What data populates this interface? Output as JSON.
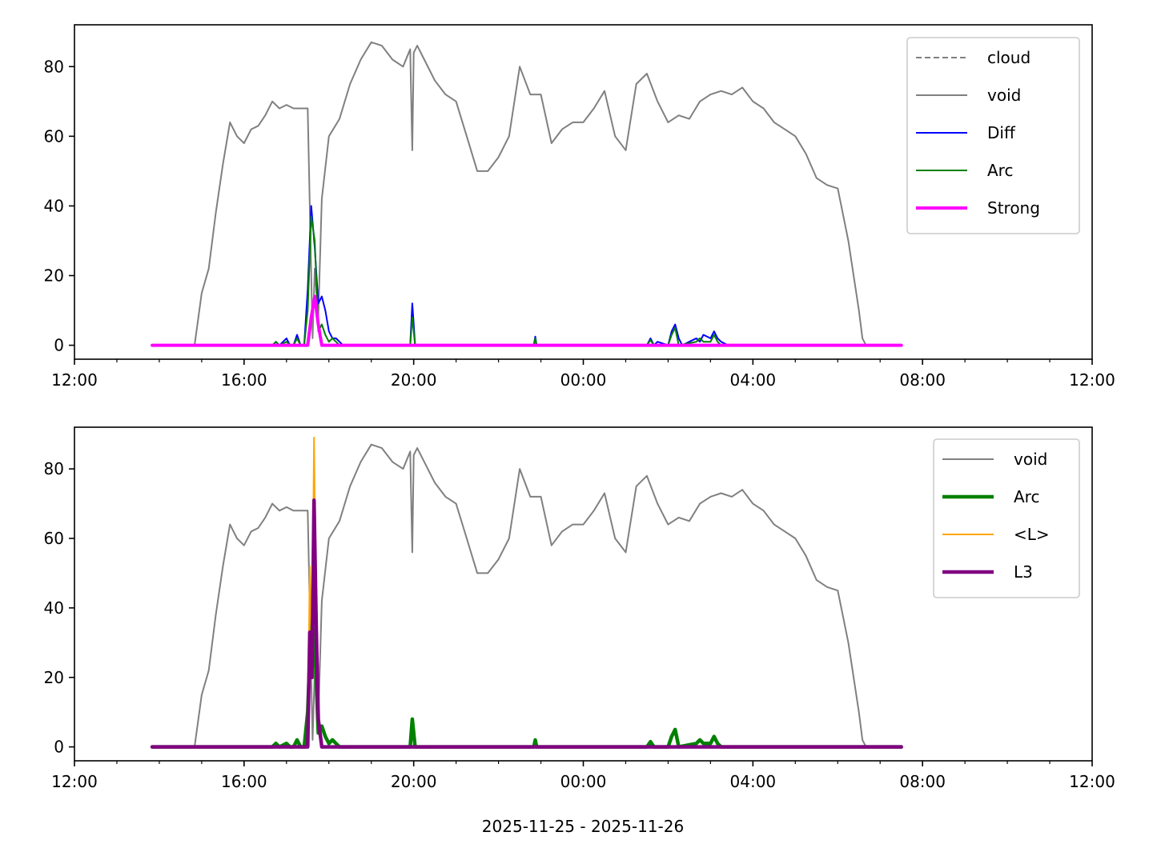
{
  "figure": {
    "xlabel": "2025-11-25 - 2025-11-26"
  },
  "chart_data": [
    {
      "type": "line",
      "xlabel": "",
      "ylabel": "",
      "xlim": [
        "2025-11-25 12:00",
        "2025-11-26 12:00"
      ],
      "ylim": [
        -4,
        92
      ],
      "x_ticks": [
        "12:00",
        "16:00",
        "20:00",
        "00:00",
        "04:00",
        "08:00",
        "12:00"
      ],
      "y_ticks": [
        0,
        20,
        40,
        60,
        80
      ],
      "grid": false,
      "legend": "top-right",
      "series": [
        {
          "name": "cloud",
          "color": "#808080",
          "style": "dashed",
          "x": [],
          "y": []
        },
        {
          "name": "void",
          "color": "#808080",
          "style": "solid",
          "x": [
            "2025-11-25 13:50",
            "2025-11-25 14:50",
            "2025-11-25 15:00",
            "2025-11-25 15:10",
            "2025-11-25 15:20",
            "2025-11-25 15:30",
            "2025-11-25 15:40",
            "2025-11-25 15:50",
            "2025-11-25 16:00",
            "2025-11-25 16:10",
            "2025-11-25 16:20",
            "2025-11-25 16:30",
            "2025-11-25 16:40",
            "2025-11-25 16:50",
            "2025-11-25 17:00",
            "2025-11-25 17:10",
            "2025-11-25 17:20",
            "2025-11-25 17:30",
            "2025-11-25 17:37",
            "2025-11-25 17:40",
            "2025-11-25 17:45",
            "2025-11-25 17:50",
            "2025-11-25 18:00",
            "2025-11-25 18:15",
            "2025-11-25 18:30",
            "2025-11-25 18:45",
            "2025-11-25 19:00",
            "2025-11-25 19:15",
            "2025-11-25 19:30",
            "2025-11-25 19:45",
            "2025-11-25 19:55",
            "2025-11-25 19:58",
            "2025-11-25 20:00",
            "2025-11-25 20:05",
            "2025-11-25 20:15",
            "2025-11-25 20:30",
            "2025-11-25 20:45",
            "2025-11-25 21:00",
            "2025-11-25 21:15",
            "2025-11-25 21:30",
            "2025-11-25 21:45",
            "2025-11-25 22:00",
            "2025-11-25 22:15",
            "2025-11-25 22:30",
            "2025-11-25 22:45",
            "2025-11-25 23:00",
            "2025-11-25 23:15",
            "2025-11-25 23:30",
            "2025-11-25 23:45",
            "2025-11-26 00:00",
            "2025-11-26 00:15",
            "2025-11-26 00:30",
            "2025-11-26 00:45",
            "2025-11-26 01:00",
            "2025-11-26 01:15",
            "2025-11-26 01:30",
            "2025-11-26 01:45",
            "2025-11-26 02:00",
            "2025-11-26 02:15",
            "2025-11-26 02:30",
            "2025-11-26 02:45",
            "2025-11-26 03:00",
            "2025-11-26 03:15",
            "2025-11-26 03:30",
            "2025-11-26 03:45",
            "2025-11-26 04:00",
            "2025-11-26 04:15",
            "2025-11-26 04:30",
            "2025-11-26 04:45",
            "2025-11-26 05:00",
            "2025-11-26 05:15",
            "2025-11-26 05:30",
            "2025-11-26 05:45",
            "2025-11-26 06:00",
            "2025-11-26 06:15",
            "2025-11-26 06:30",
            "2025-11-26 06:35",
            "2025-11-26 06:40",
            "2025-11-26 07:30"
          ],
          "y": [
            0,
            0,
            15,
            22,
            38,
            52,
            64,
            60,
            58,
            62,
            63,
            66,
            70,
            68,
            69,
            68,
            68,
            68,
            2,
            22,
            8,
            42,
            60,
            65,
            75,
            82,
            87,
            86,
            82,
            80,
            85,
            56,
            84,
            86,
            82,
            76,
            72,
            70,
            60,
            50,
            50,
            54,
            60,
            80,
            72,
            72,
            58,
            62,
            64,
            64,
            68,
            73,
            60,
            56,
            75,
            78,
            70,
            64,
            66,
            65,
            70,
            72,
            73,
            72,
            74,
            70,
            68,
            64,
            62,
            60,
            55,
            48,
            46,
            45,
            30,
            10,
            2,
            0,
            0
          ]
        },
        {
          "name": "Diff",
          "color": "#0000ff",
          "style": "solid",
          "x": [
            "2025-11-25 13:50",
            "2025-11-25 16:40",
            "2025-11-25 16:45",
            "2025-11-25 16:50",
            "2025-11-25 17:00",
            "2025-11-25 17:05",
            "2025-11-25 17:10",
            "2025-11-25 17:15",
            "2025-11-25 17:20",
            "2025-11-25 17:25",
            "2025-11-25 17:30",
            "2025-11-25 17:35",
            "2025-11-25 17:40",
            "2025-11-25 17:45",
            "2025-11-25 17:50",
            "2025-11-25 17:55",
            "2025-11-25 18:00",
            "2025-11-25 18:05",
            "2025-11-25 18:10",
            "2025-11-25 18:15",
            "2025-11-25 18:20",
            "2025-11-25 18:25",
            "2025-11-25 18:30",
            "2025-11-25 19:55",
            "2025-11-25 19:58",
            "2025-11-25 20:00",
            "2025-11-25 20:02",
            "2025-11-25 22:50",
            "2025-11-25 22:52",
            "2025-11-25 22:54",
            "2025-11-26 01:30",
            "2025-11-26 01:35",
            "2025-11-26 01:40",
            "2025-11-26 01:45",
            "2025-11-26 02:00",
            "2025-11-26 02:05",
            "2025-11-26 02:10",
            "2025-11-26 02:15",
            "2025-11-26 02:20",
            "2025-11-26 02:30",
            "2025-11-26 02:40",
            "2025-11-26 02:45",
            "2025-11-26 02:50",
            "2025-11-26 03:00",
            "2025-11-26 03:05",
            "2025-11-26 03:10",
            "2025-11-26 03:15",
            "2025-11-26 03:20",
            "2025-11-26 03:25",
            "2025-11-26 07:30"
          ],
          "y": [
            0,
            0,
            1,
            0,
            2,
            0,
            0,
            3,
            0,
            0,
            16,
            40,
            28,
            12,
            14,
            10,
            4,
            2,
            2,
            1,
            0,
            0,
            0,
            0,
            12,
            6,
            0,
            0,
            2.5,
            0,
            0,
            2,
            0,
            1,
            0,
            4,
            6,
            2,
            0,
            1,
            2,
            1,
            3,
            2,
            4,
            2,
            1,
            0.5,
            0,
            0
          ]
        },
        {
          "name": "Arc",
          "color": "#008000",
          "style": "solid",
          "x": [
            "2025-11-25 13:50",
            "2025-11-25 16:40",
            "2025-11-25 16:45",
            "2025-11-25 16:50",
            "2025-11-25 17:00",
            "2025-11-25 17:05",
            "2025-11-25 17:10",
            "2025-11-25 17:15",
            "2025-11-25 17:20",
            "2025-11-25 17:25",
            "2025-11-25 17:30",
            "2025-11-25 17:35",
            "2025-11-25 17:40",
            "2025-11-25 17:45",
            "2025-11-25 17:50",
            "2025-11-25 17:55",
            "2025-11-25 18:00",
            "2025-11-25 18:05",
            "2025-11-25 18:10",
            "2025-11-25 18:15",
            "2025-11-25 19:55",
            "2025-11-25 19:58",
            "2025-11-25 20:00",
            "2025-11-25 20:02",
            "2025-11-25 22:50",
            "2025-11-25 22:52",
            "2025-11-25 22:54",
            "2025-11-26 01:30",
            "2025-11-26 01:35",
            "2025-11-26 01:40",
            "2025-11-26 02:00",
            "2025-11-26 02:05",
            "2025-11-26 02:10",
            "2025-11-26 02:15",
            "2025-11-26 02:40",
            "2025-11-26 02:45",
            "2025-11-26 02:50",
            "2025-11-26 03:00",
            "2025-11-26 03:05",
            "2025-11-26 03:10",
            "2025-11-26 03:15",
            "2025-11-26 07:30"
          ],
          "y": [
            0,
            0,
            1,
            0,
            1,
            0,
            0,
            2,
            0,
            0,
            10,
            37,
            30,
            4,
            6,
            3,
            1,
            2,
            1,
            0,
            0,
            8,
            4,
            0,
            0,
            2,
            0,
            0,
            1.5,
            0,
            0,
            3,
            5,
            0,
            1,
            2,
            1,
            1,
            3,
            1,
            0,
            0
          ]
        },
        {
          "name": "Strong",
          "color": "#ff00ff",
          "style": "solid",
          "x": [
            "2025-11-25 13:50",
            "2025-11-25 17:30",
            "2025-11-25 17:35",
            "2025-11-25 17:40",
            "2025-11-25 17:45",
            "2025-11-25 17:50",
            "2025-11-26 07:30"
          ],
          "y": [
            0,
            0,
            8,
            14,
            6,
            0,
            0
          ]
        }
      ]
    },
    {
      "type": "line",
      "xlabel": "2025-11-25 - 2025-11-26",
      "ylabel": "",
      "xlim": [
        "2025-11-25 12:00",
        "2025-11-26 12:00"
      ],
      "ylim": [
        -4,
        92
      ],
      "x_ticks": [
        "12:00",
        "16:00",
        "20:00",
        "00:00",
        "04:00",
        "08:00",
        "12:00"
      ],
      "y_ticks": [
        0,
        20,
        40,
        60,
        80
      ],
      "grid": false,
      "legend": "top-right",
      "series": [
        {
          "name": "void",
          "color": "#808080",
          "style": "solid",
          "x": [
            "2025-11-25 13:50",
            "2025-11-25 14:50",
            "2025-11-25 15:00",
            "2025-11-25 15:10",
            "2025-11-25 15:20",
            "2025-11-25 15:30",
            "2025-11-25 15:40",
            "2025-11-25 15:50",
            "2025-11-25 16:00",
            "2025-11-25 16:10",
            "2025-11-25 16:20",
            "2025-11-25 16:30",
            "2025-11-25 16:40",
            "2025-11-25 16:50",
            "2025-11-25 17:00",
            "2025-11-25 17:10",
            "2025-11-25 17:20",
            "2025-11-25 17:30",
            "2025-11-25 17:37",
            "2025-11-25 17:40",
            "2025-11-25 17:45",
            "2025-11-25 17:50",
            "2025-11-25 18:00",
            "2025-11-25 18:15",
            "2025-11-25 18:30",
            "2025-11-25 18:45",
            "2025-11-25 19:00",
            "2025-11-25 19:15",
            "2025-11-25 19:30",
            "2025-11-25 19:45",
            "2025-11-25 19:55",
            "2025-11-25 19:58",
            "2025-11-25 20:00",
            "2025-11-25 20:05",
            "2025-11-25 20:15",
            "2025-11-25 20:30",
            "2025-11-25 20:45",
            "2025-11-25 21:00",
            "2025-11-25 21:15",
            "2025-11-25 21:30",
            "2025-11-25 21:45",
            "2025-11-25 22:00",
            "2025-11-25 22:15",
            "2025-11-25 22:30",
            "2025-11-25 22:45",
            "2025-11-25 23:00",
            "2025-11-25 23:15",
            "2025-11-25 23:30",
            "2025-11-25 23:45",
            "2025-11-26 00:00",
            "2025-11-26 00:15",
            "2025-11-26 00:30",
            "2025-11-26 00:45",
            "2025-11-26 01:00",
            "2025-11-26 01:15",
            "2025-11-26 01:30",
            "2025-11-26 01:45",
            "2025-11-26 02:00",
            "2025-11-26 02:15",
            "2025-11-26 02:30",
            "2025-11-26 02:45",
            "2025-11-26 03:00",
            "2025-11-26 03:15",
            "2025-11-26 03:30",
            "2025-11-26 03:45",
            "2025-11-26 04:00",
            "2025-11-26 04:15",
            "2025-11-26 04:30",
            "2025-11-26 04:45",
            "2025-11-26 05:00",
            "2025-11-26 05:15",
            "2025-11-26 05:30",
            "2025-11-26 05:45",
            "2025-11-26 06:00",
            "2025-11-26 06:15",
            "2025-11-26 06:30",
            "2025-11-26 06:35",
            "2025-11-26 06:40",
            "2025-11-26 07:30"
          ],
          "y": [
            0,
            0,
            15,
            22,
            38,
            52,
            64,
            60,
            58,
            62,
            63,
            66,
            70,
            68,
            69,
            68,
            68,
            68,
            2,
            22,
            8,
            42,
            60,
            65,
            75,
            82,
            87,
            86,
            82,
            80,
            85,
            56,
            84,
            86,
            82,
            76,
            72,
            70,
            60,
            50,
            50,
            54,
            60,
            80,
            72,
            72,
            58,
            62,
            64,
            64,
            68,
            73,
            60,
            56,
            75,
            78,
            70,
            64,
            66,
            65,
            70,
            72,
            73,
            72,
            74,
            70,
            68,
            64,
            62,
            60,
            55,
            48,
            46,
            45,
            30,
            10,
            2,
            0,
            0
          ]
        },
        {
          "name": "Arc",
          "color": "#008000",
          "style": "solid",
          "x": [
            "2025-11-25 13:50",
            "2025-11-25 16:40",
            "2025-11-25 16:45",
            "2025-11-25 16:50",
            "2025-11-25 17:00",
            "2025-11-25 17:05",
            "2025-11-25 17:10",
            "2025-11-25 17:15",
            "2025-11-25 17:20",
            "2025-11-25 17:25",
            "2025-11-25 17:30",
            "2025-11-25 17:35",
            "2025-11-25 17:40",
            "2025-11-25 17:45",
            "2025-11-25 17:50",
            "2025-11-25 17:55",
            "2025-11-25 18:00",
            "2025-11-25 18:05",
            "2025-11-25 18:10",
            "2025-11-25 18:15",
            "2025-11-25 19:55",
            "2025-11-25 19:58",
            "2025-11-25 20:00",
            "2025-11-25 20:02",
            "2025-11-25 22:50",
            "2025-11-25 22:52",
            "2025-11-25 22:54",
            "2025-11-26 01:30",
            "2025-11-26 01:35",
            "2025-11-26 01:40",
            "2025-11-26 02:00",
            "2025-11-26 02:05",
            "2025-11-26 02:10",
            "2025-11-26 02:15",
            "2025-11-26 02:40",
            "2025-11-26 02:45",
            "2025-11-26 02:50",
            "2025-11-26 03:00",
            "2025-11-26 03:05",
            "2025-11-26 03:10",
            "2025-11-26 03:15",
            "2025-11-26 07:30"
          ],
          "y": [
            0,
            0,
            1,
            0,
            1,
            0,
            0,
            2,
            0,
            0,
            10,
            37,
            30,
            4,
            6,
            3,
            1,
            2,
            1,
            0,
            0,
            8,
            4,
            0,
            0,
            2,
            0,
            0,
            1.5,
            0,
            0,
            3,
            5,
            0,
            1,
            2,
            1,
            1,
            3,
            1,
            0,
            0
          ]
        },
        {
          "name": "<L>",
          "color": "#ffa500",
          "style": "solid",
          "x": [
            "2025-11-25 13:50",
            "2025-11-25 17:30",
            "2025-11-25 17:33",
            "2025-11-25 17:36",
            "2025-11-25 17:39",
            "2025-11-25 17:42",
            "2025-11-25 17:45",
            "2025-11-25 17:50",
            "2025-11-26 07:30"
          ],
          "y": [
            0,
            0,
            52,
            20,
            89,
            30,
            8,
            0,
            0
          ]
        },
        {
          "name": "L3",
          "color": "#800080",
          "style": "solid",
          "x": [
            "2025-11-25 13:50",
            "2025-11-25 17:30",
            "2025-11-25 17:33",
            "2025-11-25 17:36",
            "2025-11-25 17:39",
            "2025-11-25 17:42",
            "2025-11-25 17:45",
            "2025-11-25 17:50",
            "2025-11-26 07:30"
          ],
          "y": [
            0,
            0,
            33,
            20,
            71,
            35,
            8,
            0,
            0
          ]
        }
      ]
    }
  ]
}
